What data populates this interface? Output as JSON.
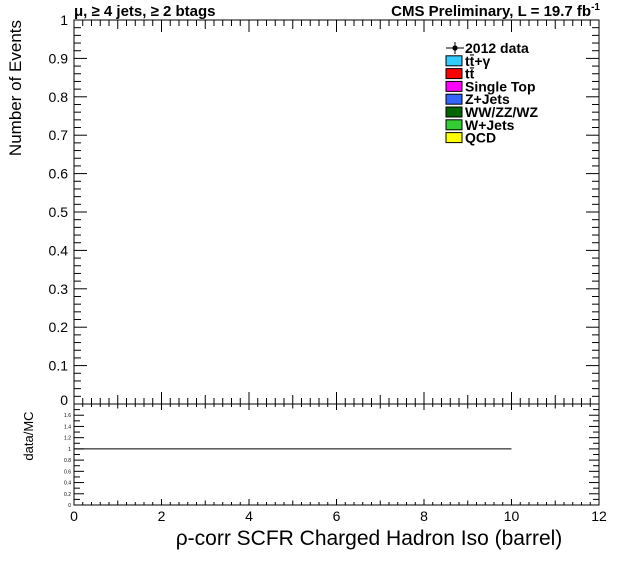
{
  "chart_data": [
    {
      "type": "bar",
      "stacked": true,
      "header_left": "μ, ≥ 4 jets, ≥ 2 btags",
      "header_right_prefix": "CMS Preliminary, L = 19.7 fb",
      "header_right_sup": "-1",
      "ylabel": "Number of Events",
      "xlim": [
        0,
        12
      ],
      "ylim": [
        0,
        1
      ],
      "y_ticks": [
        "0.1",
        "0.2",
        "0.3",
        "0.4",
        "0.5",
        "0.6",
        "0.7",
        "0.8",
        "0.9",
        "1"
      ],
      "y_tick_values": [
        0.1,
        0.2,
        0.3,
        0.4,
        0.5,
        0.6,
        0.7,
        0.8,
        0.9,
        1.0
      ],
      "bottom_tick_label": "0",
      "series": [],
      "legend_position": "top-right",
      "legend": [
        {
          "label": "2012 data",
          "marker": "point",
          "color": "#000000"
        },
        {
          "label": "tt̄+γ",
          "marker": "box",
          "color": "#33ccff"
        },
        {
          "label": "tt̄",
          "marker": "box",
          "color": "#ff0000"
        },
        {
          "label": "Single Top",
          "marker": "box",
          "color": "#ff00ff"
        },
        {
          "label": "Z+Jets",
          "marker": "box",
          "color": "#3366ff"
        },
        {
          "label": "WW/ZZ/WZ",
          "marker": "box",
          "color": "#006600"
        },
        {
          "label": "W+Jets",
          "marker": "box",
          "color": "#33cc33"
        },
        {
          "label": "QCD",
          "marker": "box",
          "color": "#ffff00"
        }
      ]
    },
    {
      "type": "line",
      "ylabel": "data/MC",
      "xlabel": "ρ-corr SCFR Charged Hadron Iso (barrel)",
      "xlim": [
        0,
        12
      ],
      "ylim": [
        0,
        1.8
      ],
      "x_ticks": [
        "0",
        "2",
        "4",
        "6",
        "8",
        "10",
        "12"
      ],
      "x_tick_values": [
        0,
        2,
        4,
        6,
        8,
        10,
        12
      ],
      "y_ticks": [
        "0",
        "0.2",
        "0.4",
        "0.6",
        "0.8",
        "1",
        "1.2",
        "1.4",
        "1.6"
      ],
      "y_tick_values": [
        0,
        0.2,
        0.4,
        0.6,
        0.8,
        1.0,
        1.2,
        1.4,
        1.6
      ],
      "reference_line": {
        "x": [
          0,
          10
        ],
        "y": 1
      }
    }
  ]
}
